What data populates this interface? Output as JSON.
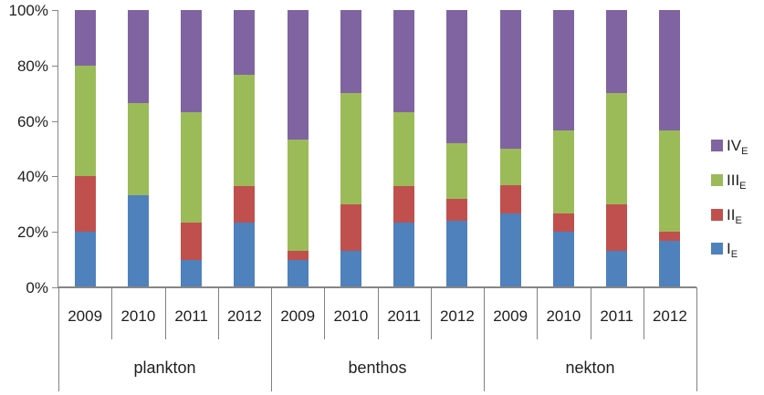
{
  "chart_data": {
    "type": "bar",
    "subtype": "stacked-100-percent",
    "title": "",
    "groups": [
      "plankton",
      "benthos",
      "nekton"
    ],
    "years": [
      "2009",
      "2010",
      "2011",
      "2012"
    ],
    "categories": [
      "plankton 2009",
      "plankton 2010",
      "plankton 2011",
      "plankton 2012",
      "benthos 2009",
      "benthos 2010",
      "benthos 2011",
      "benthos 2012",
      "nekton 2009",
      "nekton 2010",
      "nekton 2011",
      "nekton 2012"
    ],
    "series": [
      {
        "name": "I",
        "sub": "E",
        "color": "#4F81BD",
        "values": [
          20.0,
          33.3,
          10.0,
          23.3,
          10.0,
          13.3,
          23.3,
          24.0,
          26.7,
          20.0,
          13.3,
          16.7
        ]
      },
      {
        "name": "II",
        "sub": "E",
        "color": "#C0504D",
        "values": [
          20.0,
          0.0,
          13.3,
          13.3,
          3.3,
          16.7,
          13.3,
          8.0,
          10.0,
          6.7,
          16.7,
          3.3
        ]
      },
      {
        "name": "III",
        "sub": "E",
        "color": "#9BBB59",
        "values": [
          40.0,
          33.3,
          40.0,
          40.0,
          40.0,
          40.0,
          26.7,
          20.0,
          13.3,
          30.0,
          40.0,
          36.7
        ]
      },
      {
        "name": "IV",
        "sub": "E",
        "color": "#8064A2",
        "values": [
          20.0,
          33.4,
          36.7,
          23.4,
          46.7,
          30.0,
          36.7,
          48.0,
          50.0,
          43.3,
          30.0,
          43.3
        ]
      }
    ],
    "y_axis": {
      "ticks": [
        "100%",
        "80%",
        "60%",
        "40%",
        "20%",
        "0%"
      ],
      "min": 0,
      "max": 100,
      "step": 20,
      "grid": false
    },
    "legend": {
      "position": "right",
      "items": [
        {
          "label": "IV",
          "sub": "E",
          "color": "#8064A2"
        },
        {
          "label": "III",
          "sub": "E",
          "color": "#9BBB59"
        },
        {
          "label": "II",
          "sub": "E",
          "color": "#C0504D"
        },
        {
          "label": "I",
          "sub": "E",
          "color": "#4F81BD"
        }
      ]
    }
  }
}
